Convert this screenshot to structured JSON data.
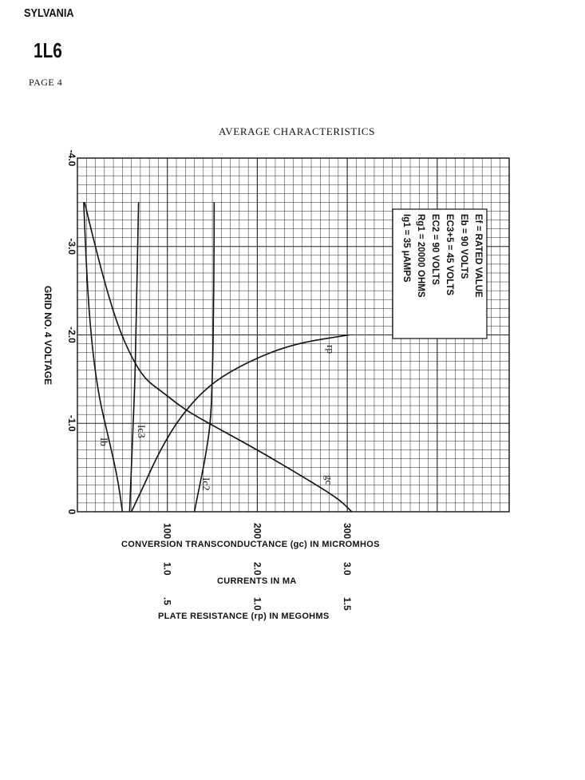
{
  "header": {
    "brand": "SYLVANIA",
    "tube_type": "1L6",
    "page": "PAGE 4"
  },
  "chart_data": {
    "type": "line",
    "title": "AVERAGE CHARACTERISTICS",
    "ylabel": "GRID NO. 4 VOLTAGE",
    "ylim": [
      0,
      -4.0
    ],
    "y_ticks": [
      "0",
      "-1.0",
      "-2.0",
      "-3.0",
      "-4.0"
    ],
    "xaxes": [
      {
        "label": "CONVERSION TRANSCONDUCTANCE (gc) IN MICROMHOS",
        "ticks": [
          "100",
          "200",
          "300"
        ]
      },
      {
        "label": "CURRENTS IN MA",
        "ticks": [
          "1.0",
          "2.0",
          "3.0"
        ]
      },
      {
        "label": "PLATE RESISTANCE (rp) IN MEGOHMS",
        "ticks": [
          ".5",
          "1.0",
          "1.5"
        ]
      }
    ],
    "xlim_gc": [
      0,
      480
    ],
    "grid": true,
    "conditions": [
      "Ef = RATED VALUE",
      "Eb = 90 VOLTS",
      "EC3+5 = 45 VOLTS",
      "EC2 = 90 VOLTS",
      "Rg1 = 20000 OHMS",
      "Ig1 = 35 µAMPS"
    ],
    "series": [
      {
        "name": "Ib",
        "x": [
          0.5,
          0.46,
          0.4,
          0.33,
          0.24,
          0.17,
          0.12,
          0.09,
          0.07
        ],
        "y": [
          0,
          -0.3,
          -0.6,
          -0.9,
          -1.3,
          -1.8,
          -2.4,
          -3.0,
          -3.5
        ]
      },
      {
        "name": "Ic3",
        "x": [
          0.58,
          0.6,
          0.62,
          0.64,
          0.65,
          0.66,
          0.67,
          0.68
        ],
        "y": [
          0,
          -0.5,
          -1.0,
          -1.5,
          -2.0,
          -2.5,
          -3.0,
          -3.5
        ]
      },
      {
        "name": "Ic2",
        "x": [
          1.3,
          1.36,
          1.42,
          1.48,
          1.5,
          1.51,
          1.52,
          1.52
        ],
        "y": [
          0,
          -0.3,
          -0.6,
          -1.0,
          -1.5,
          -2.0,
          -3.0,
          -3.5
        ]
      },
      {
        "name": "gc",
        "x": [
          305,
          290,
          250,
          200,
          155,
          120,
          95,
          75,
          60,
          45,
          30,
          15,
          8
        ],
        "y": [
          0,
          -0.15,
          -0.4,
          -0.7,
          -0.95,
          -1.15,
          -1.35,
          -1.5,
          -1.75,
          -2.1,
          -2.6,
          -3.2,
          -3.5
        ]
      },
      {
        "name": "rp",
        "x": [
          0.3,
          0.37,
          0.46,
          0.58,
          0.74,
          0.95,
          1.2,
          1.51
        ],
        "y": [
          0,
          -0.3,
          -0.7,
          -1.1,
          -1.45,
          -1.7,
          -1.9,
          -2.0
        ]
      }
    ]
  }
}
